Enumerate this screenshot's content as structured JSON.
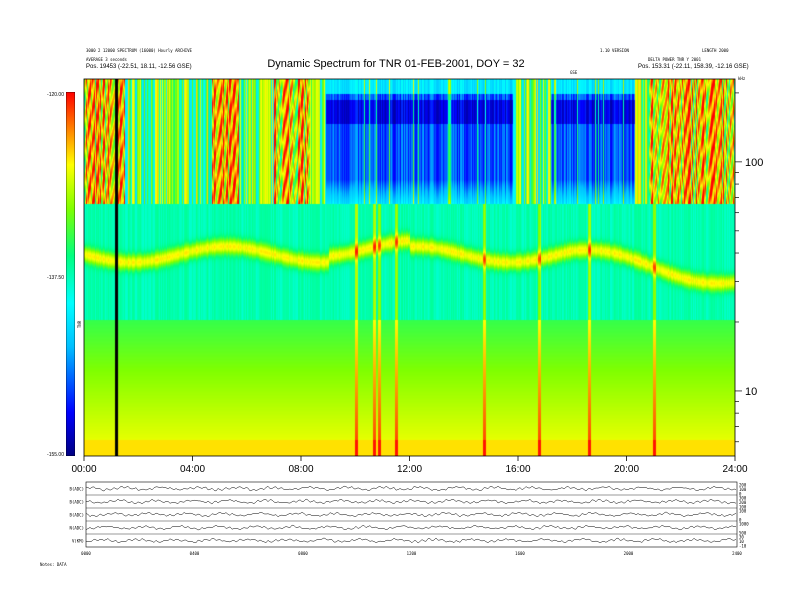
{
  "header": {
    "title": "Dynamic Spectrum for TNR 01-FEB-2001, DOY = 32",
    "left_line1": "3000 2 12000 SPECTRUM (16000) Hourly ARCHIVE",
    "left_line2": "AVERAGE 3 seconds",
    "left_pos": "Pos.   19453 (-22.51, 18.11, -12.56 GSE)",
    "right_line1": "1.10 VERSION",
    "right_line2": "LENGTH 2000",
    "right_line3": "DELTA POWER TNR Y 2001",
    "right_pos": "Pos.   153.31 (-22.11, 158.39, -12.16 GSE)",
    "center_small": "GSE",
    "khz_label": "kHz"
  },
  "chart_data": {
    "type": "heatmap",
    "title": "Dynamic Spectrum for TNR 01-FEB-2001, DOY = 32",
    "x_ticks": [
      "00:00",
      "04:00",
      "08:00",
      "12:00",
      "16:00",
      "20:00",
      "24:00"
    ],
    "x_range_hours": [
      0,
      24
    ],
    "y_scale": "log",
    "y_unit": "kHz",
    "y_ticks": [
      10,
      100
    ],
    "colorbar": {
      "ticks": [
        "-120.00",
        "-137.50",
        "-155.00"
      ],
      "label": "TNR",
      "range": [
        -155,
        -120
      ],
      "colors": [
        "#000080",
        "#0000ff",
        "#00bfff",
        "#00ffff",
        "#00ff80",
        "#80ff00",
        "#ffff00",
        "#ff8000",
        "#ff0000"
      ]
    },
    "marker_line_hour": 1.2
  },
  "timeseries": {
    "labels": [
      "B(ADC)",
      "B(ADC)",
      "B(ADC)",
      "N(ADC)",
      "V(KM)"
    ],
    "right_ticks": [
      [
        "200",
        "100",
        "0"
      ],
      [
        "300",
        "200",
        "100"
      ],
      [
        "100",
        "0"
      ],
      [
        "1000",
        "500"
      ],
      [
        "30",
        "10",
        "-10"
      ]
    ],
    "x_ticks": [
      "0000",
      "0400",
      "0800",
      "1200",
      "1600",
      "2000",
      "2400"
    ],
    "footer": "Notes:  DATA"
  }
}
